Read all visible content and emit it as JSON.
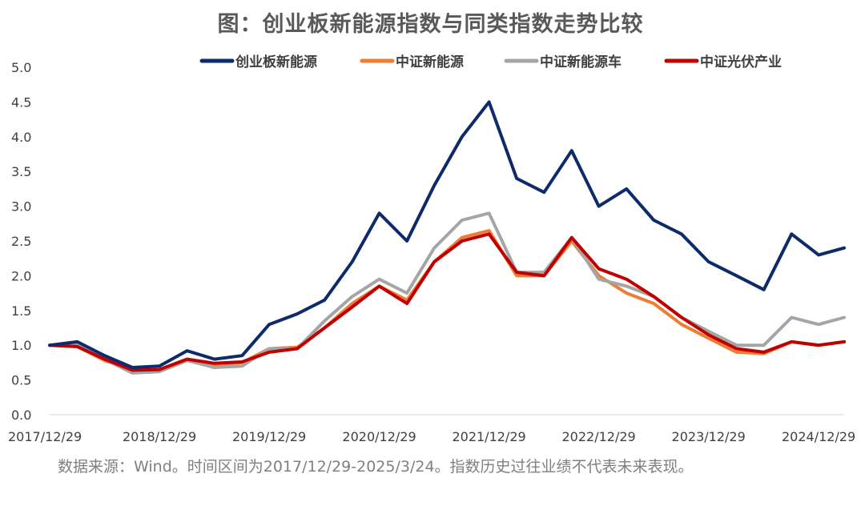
{
  "title": "图：创业板新能源指数与同类指数走势比较",
  "footnote": "数据来源：Wind。时间区间为2017/12/29-2025/3/24。指数历史过往业绩不代表未来表现。",
  "chart_data": {
    "type": "line",
    "title": "图：创业板新能源指数与同类指数走势比较",
    "xlabel": "",
    "ylabel": "",
    "ylim": [
      0,
      5
    ],
    "yticks": [
      "0.0",
      "0.5",
      "1.0",
      "1.5",
      "2.0",
      "2.5",
      "3.0",
      "3.5",
      "4.0",
      "4.5",
      "5.0"
    ],
    "xticks": [
      "2017/12/29",
      "2018/12/29",
      "2019/12/29",
      "2020/12/29",
      "2021/12/29",
      "2022/12/29",
      "2023/12/29",
      "2024/12/29"
    ],
    "x_range": [
      "2017/12/29",
      "2025/3/24"
    ],
    "grid": false,
    "legend_position": "top",
    "x": [
      "2017/12/29",
      "2018/3/31",
      "2018/6/30",
      "2018/9/30",
      "2018/12/29",
      "2019/3/31",
      "2019/6/30",
      "2019/9/30",
      "2019/12/29",
      "2020/3/31",
      "2020/6/30",
      "2020/9/30",
      "2020/12/29",
      "2021/3/31",
      "2021/6/30",
      "2021/9/30",
      "2021/12/29",
      "2022/3/31",
      "2022/6/30",
      "2022/9/30",
      "2022/12/29",
      "2023/3/31",
      "2023/6/30",
      "2023/9/30",
      "2023/12/29",
      "2024/3/31",
      "2024/6/30",
      "2024/9/30",
      "2024/12/29",
      "2025/3/24"
    ],
    "series": [
      {
        "name": "创业板新能源",
        "color": "#0d2a6b",
        "values": [
          1.0,
          1.05,
          0.85,
          0.68,
          0.7,
          0.92,
          0.8,
          0.85,
          1.3,
          1.45,
          1.65,
          2.2,
          2.9,
          2.5,
          3.3,
          4.0,
          4.5,
          3.4,
          3.2,
          3.8,
          3.0,
          3.25,
          2.8,
          2.6,
          2.2,
          2.0,
          1.8,
          2.6,
          2.3,
          2.4
        ]
      },
      {
        "name": "中证新能源",
        "color": "#ed7d31",
        "values": [
          1.0,
          0.98,
          0.78,
          0.65,
          0.65,
          0.8,
          0.72,
          0.75,
          0.95,
          0.97,
          1.25,
          1.6,
          1.85,
          1.65,
          2.2,
          2.55,
          2.65,
          2.0,
          2.0,
          2.5,
          2.0,
          1.75,
          1.6,
          1.3,
          1.1,
          0.9,
          0.88,
          1.05,
          1.0,
          1.05
        ]
      },
      {
        "name": "中证新能源车",
        "color": "#a5a5a5",
        "values": [
          1.0,
          1.02,
          0.8,
          0.6,
          0.62,
          0.78,
          0.68,
          0.7,
          0.95,
          0.95,
          1.35,
          1.7,
          1.95,
          1.75,
          2.4,
          2.8,
          2.9,
          2.05,
          2.05,
          2.55,
          1.95,
          1.85,
          1.7,
          1.4,
          1.2,
          1.0,
          1.0,
          1.4,
          1.3,
          1.4
        ]
      },
      {
        "name": "中证光伏产业",
        "color": "#c00000",
        "values": [
          1.0,
          0.98,
          0.8,
          0.64,
          0.65,
          0.8,
          0.74,
          0.76,
          0.9,
          0.95,
          1.25,
          1.55,
          1.85,
          1.6,
          2.2,
          2.5,
          2.6,
          2.05,
          2.0,
          2.55,
          2.1,
          1.95,
          1.7,
          1.4,
          1.15,
          0.95,
          0.9,
          1.05,
          1.0,
          1.05
        ]
      }
    ]
  }
}
